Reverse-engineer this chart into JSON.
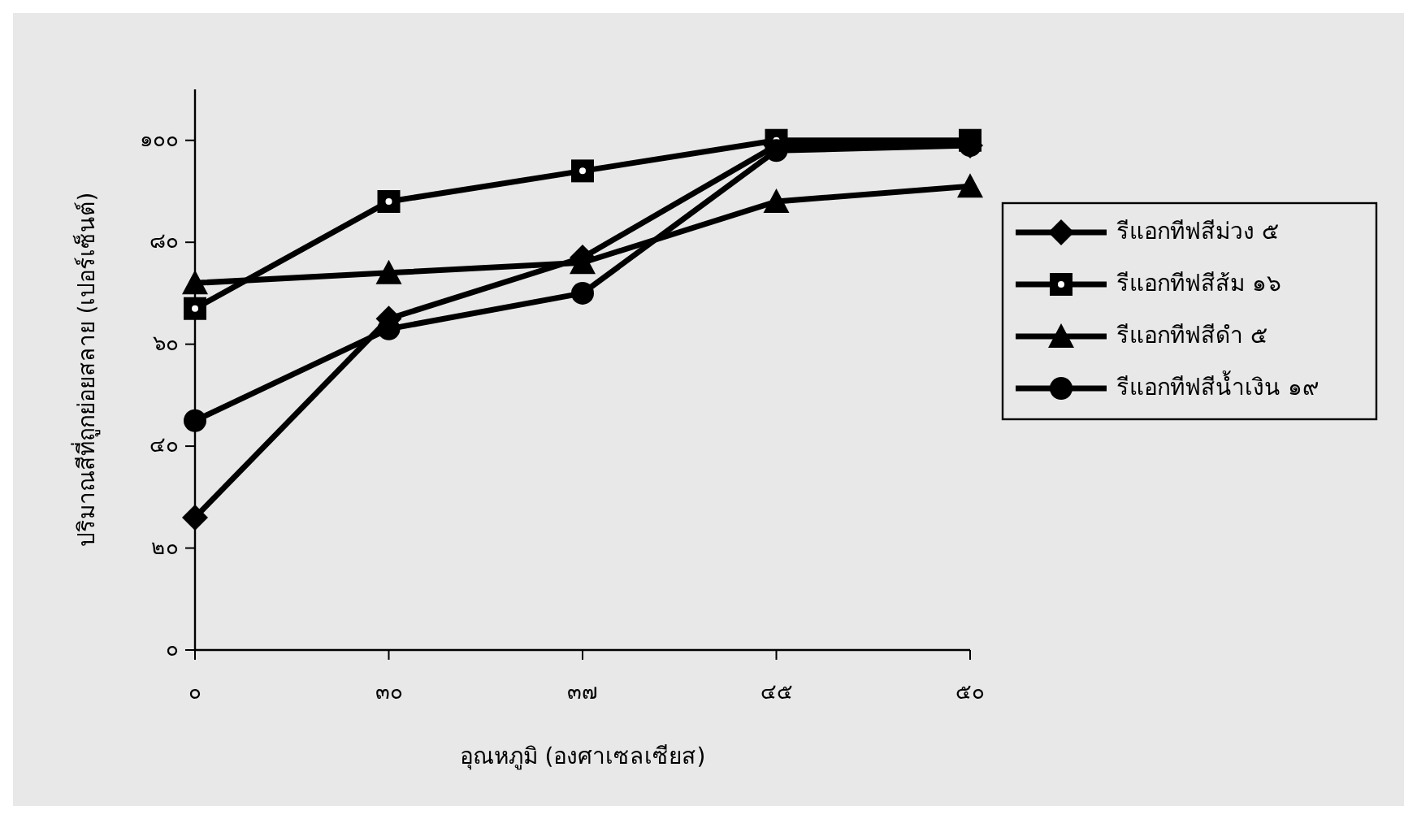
{
  "chart_data": {
    "type": "line",
    "xlabel": "อุณหภูมิ (องศาเซลเซียส)",
    "ylabel": "ปริมาณสีที่ถูกย่อยสลาย (เปอร์เซ็นต์)",
    "categories": [
      "๐",
      "๓๐",
      "๓๗",
      "๔๕",
      "๕๐"
    ],
    "ylim": [
      0,
      110
    ],
    "yticks": [
      {
        "value": 0,
        "label": "๐"
      },
      {
        "value": 20,
        "label": "๒๐"
      },
      {
        "value": 40,
        "label": "๔๐"
      },
      {
        "value": 60,
        "label": "๖๐"
      },
      {
        "value": 80,
        "label": "๘๐"
      },
      {
        "value": 100,
        "label": "๑๐๐"
      }
    ],
    "grid": false,
    "legend": "right",
    "series": [
      {
        "name": "รีแอกทีฟสีม่วง ๕",
        "color": "#000000",
        "marker": "diamond",
        "values": [
          26,
          65,
          77,
          99,
          99
        ]
      },
      {
        "name": "รีแอกทีฟสีส้ม ๑๖",
        "color": "#000000",
        "marker": "square",
        "values": [
          67,
          88,
          94,
          100,
          100
        ]
      },
      {
        "name": "รีแอกทีฟสีดำ ๕",
        "color": "#000000",
        "marker": "triangle",
        "values": [
          72,
          74,
          76,
          88,
          91
        ]
      },
      {
        "name": "รีแอกทีฟสีน้ำเงิน ๑๙",
        "color": "#000000",
        "marker": "circle",
        "values": [
          45,
          63,
          70,
          98,
          99
        ]
      }
    ]
  }
}
